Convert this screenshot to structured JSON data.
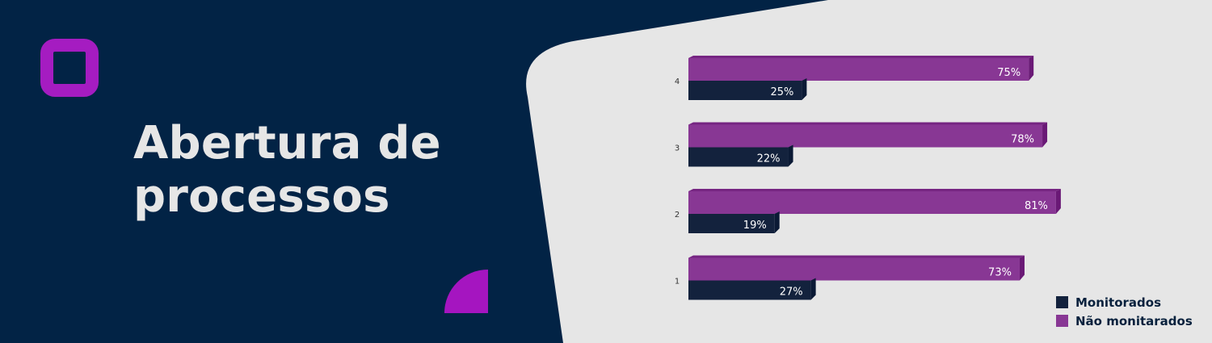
{
  "banner": {
    "title_line_1": "Abertura de",
    "title_line_2": "processos",
    "colors": {
      "navy": "#022345",
      "purple": "#a515c0",
      "panel": "#e6e6e6"
    },
    "icons": {
      "logo": "rounded-square-outline",
      "decoration": "quarter-circle"
    }
  },
  "chart_data": {
    "type": "bar",
    "orientation": "horizontal",
    "categories": [
      "4",
      "3",
      "2",
      "1"
    ],
    "series": [
      {
        "name": "Não monitarados",
        "values": [
          75,
          78,
          81,
          73
        ],
        "labels": [
          "75%",
          "78%",
          "81%",
          "73%"
        ],
        "color": "#883794"
      },
      {
        "name": "Monitorados",
        "values": [
          25,
          22,
          19,
          27
        ],
        "labels": [
          "25%",
          "22%",
          "19%",
          "27%"
        ],
        "color": "#13223d"
      }
    ],
    "title": "",
    "xlabel": "",
    "ylabel": "",
    "xlim": [
      0,
      100
    ],
    "grid": false,
    "legend": "bottom-right",
    "legend_items": [
      {
        "label": "Monitorados",
        "color": "#13223d"
      },
      {
        "label": "Não monitarados",
        "color": "#883794"
      }
    ]
  }
}
